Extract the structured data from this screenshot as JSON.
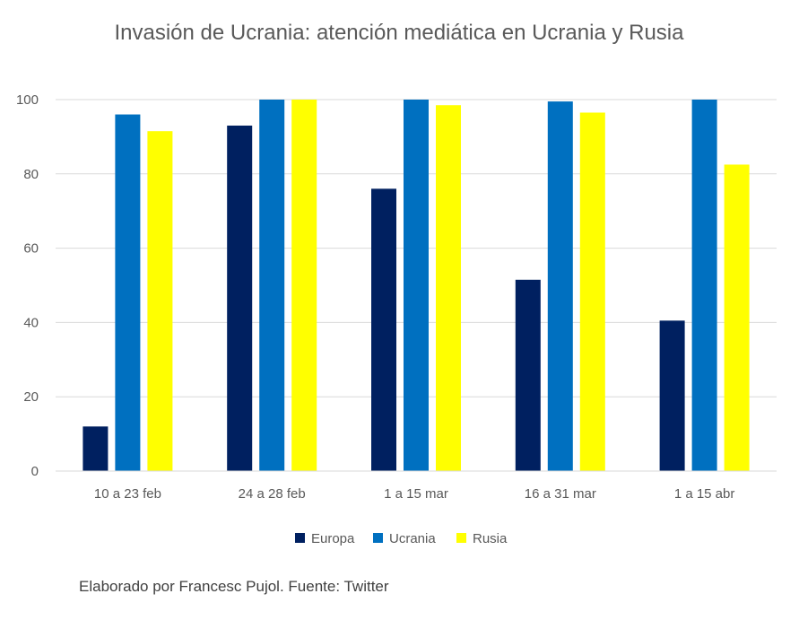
{
  "chart_data": {
    "type": "bar",
    "title": "Invasión de Ucrania: atención mediática en Ucrania y Rusia",
    "xlabel": "",
    "ylabel": "",
    "categories": [
      "10 a 23 feb",
      "24 a 28 feb",
      "1 a 15 mar",
      "16 a 31 mar",
      "1 a 15 abr"
    ],
    "series": [
      {
        "name": "Europa",
        "color": "#002060",
        "values": [
          12,
          93,
          76,
          51.5,
          40.5
        ]
      },
      {
        "name": "Ucrania",
        "color": "#0070C0",
        "values": [
          96,
          100,
          100,
          99.5,
          100
        ]
      },
      {
        "name": "Rusia",
        "color": "#FFFF00",
        "values": [
          91.5,
          100,
          98.5,
          96.5,
          82.5
        ]
      }
    ],
    "ylim": [
      0,
      100
    ],
    "yticks": [
      0,
      20,
      40,
      60,
      80,
      100
    ],
    "grid": true,
    "legend_position": "bottom",
    "source_note": "Elaborado por Francesc Pujol. Fuente: Twitter"
  }
}
